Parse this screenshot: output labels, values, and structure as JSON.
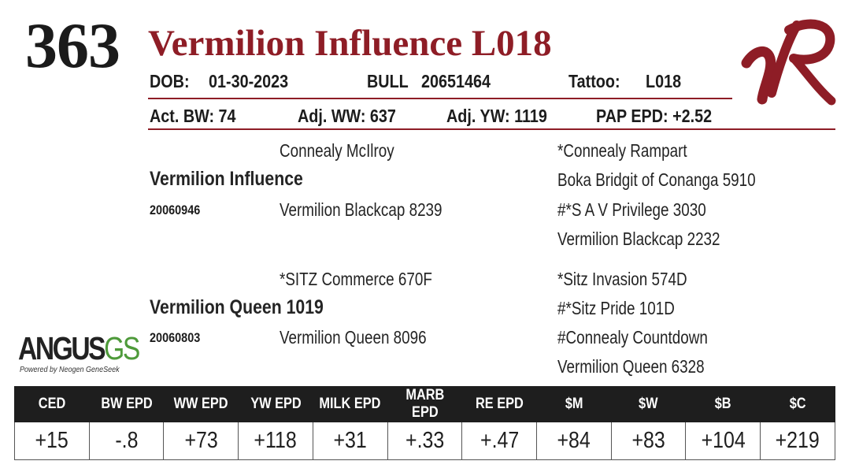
{
  "lot_number": "363",
  "animal_name": "Vermilion Influence L018",
  "details": {
    "dob_label": "DOB:",
    "dob": "01-30-2023",
    "sex": "BULL",
    "registration": "20651464",
    "tattoo_label": "Tattoo:",
    "tattoo": "L018"
  },
  "measures": {
    "act_bw": "Act. BW: 74",
    "adj_ww": "Adj. WW: 637",
    "adj_yw": "Adj. YW: 1119",
    "pap_epd": "PAP EPD: +2.52"
  },
  "pedigree": {
    "sire": "Vermilion Influence",
    "sire_reg": "20060946",
    "sire_sire": "Connealy McIlroy",
    "sire_dam": "Vermilion Blackcap 8239",
    "ssg_sire": "*Connealy Rampart",
    "ssg_dam": "Boka Bridgit of Conanga 5910",
    "sdg_sire": "#*S A V Privilege 3030",
    "sdg_dam": "Vermilion Blackcap 2232",
    "dam": "Vermilion Queen 1019",
    "dam_reg": "20060803",
    "dam_sire": "*SITZ Commerce 670F",
    "dam_dam": "Vermilion Queen 8096",
    "dsg_sire": "*Sitz Invasion 574D",
    "dsg_dam": "#*Sitz Pride 101D",
    "ddg_sire": "#Connealy Countdown",
    "ddg_dam": "Vermilion Queen 6328"
  },
  "logos": {
    "ranch_logo": "vr-brand-logo",
    "genomics_logo_main": "ANGUS",
    "genomics_logo_suffix": "GS",
    "genomics_tagline": "Powered by Neogen GeneSeek"
  },
  "epd_table": {
    "headers": [
      "CED",
      "BW EPD",
      "WW EPD",
      "YW EPD",
      "MILK EPD",
      "MARB EPD",
      "RE EPD",
      "$M",
      "$W",
      "$B",
      "$C"
    ],
    "values": [
      "+15",
      "-.8",
      "+73",
      "+118",
      "+31",
      "+.33",
      "+.47",
      "+84",
      "+83",
      "+104",
      "+219"
    ]
  },
  "colors": {
    "accent_red": "#8e1d26",
    "header_black": "#1e1e1e",
    "gs_green": "#4e9a3a"
  }
}
